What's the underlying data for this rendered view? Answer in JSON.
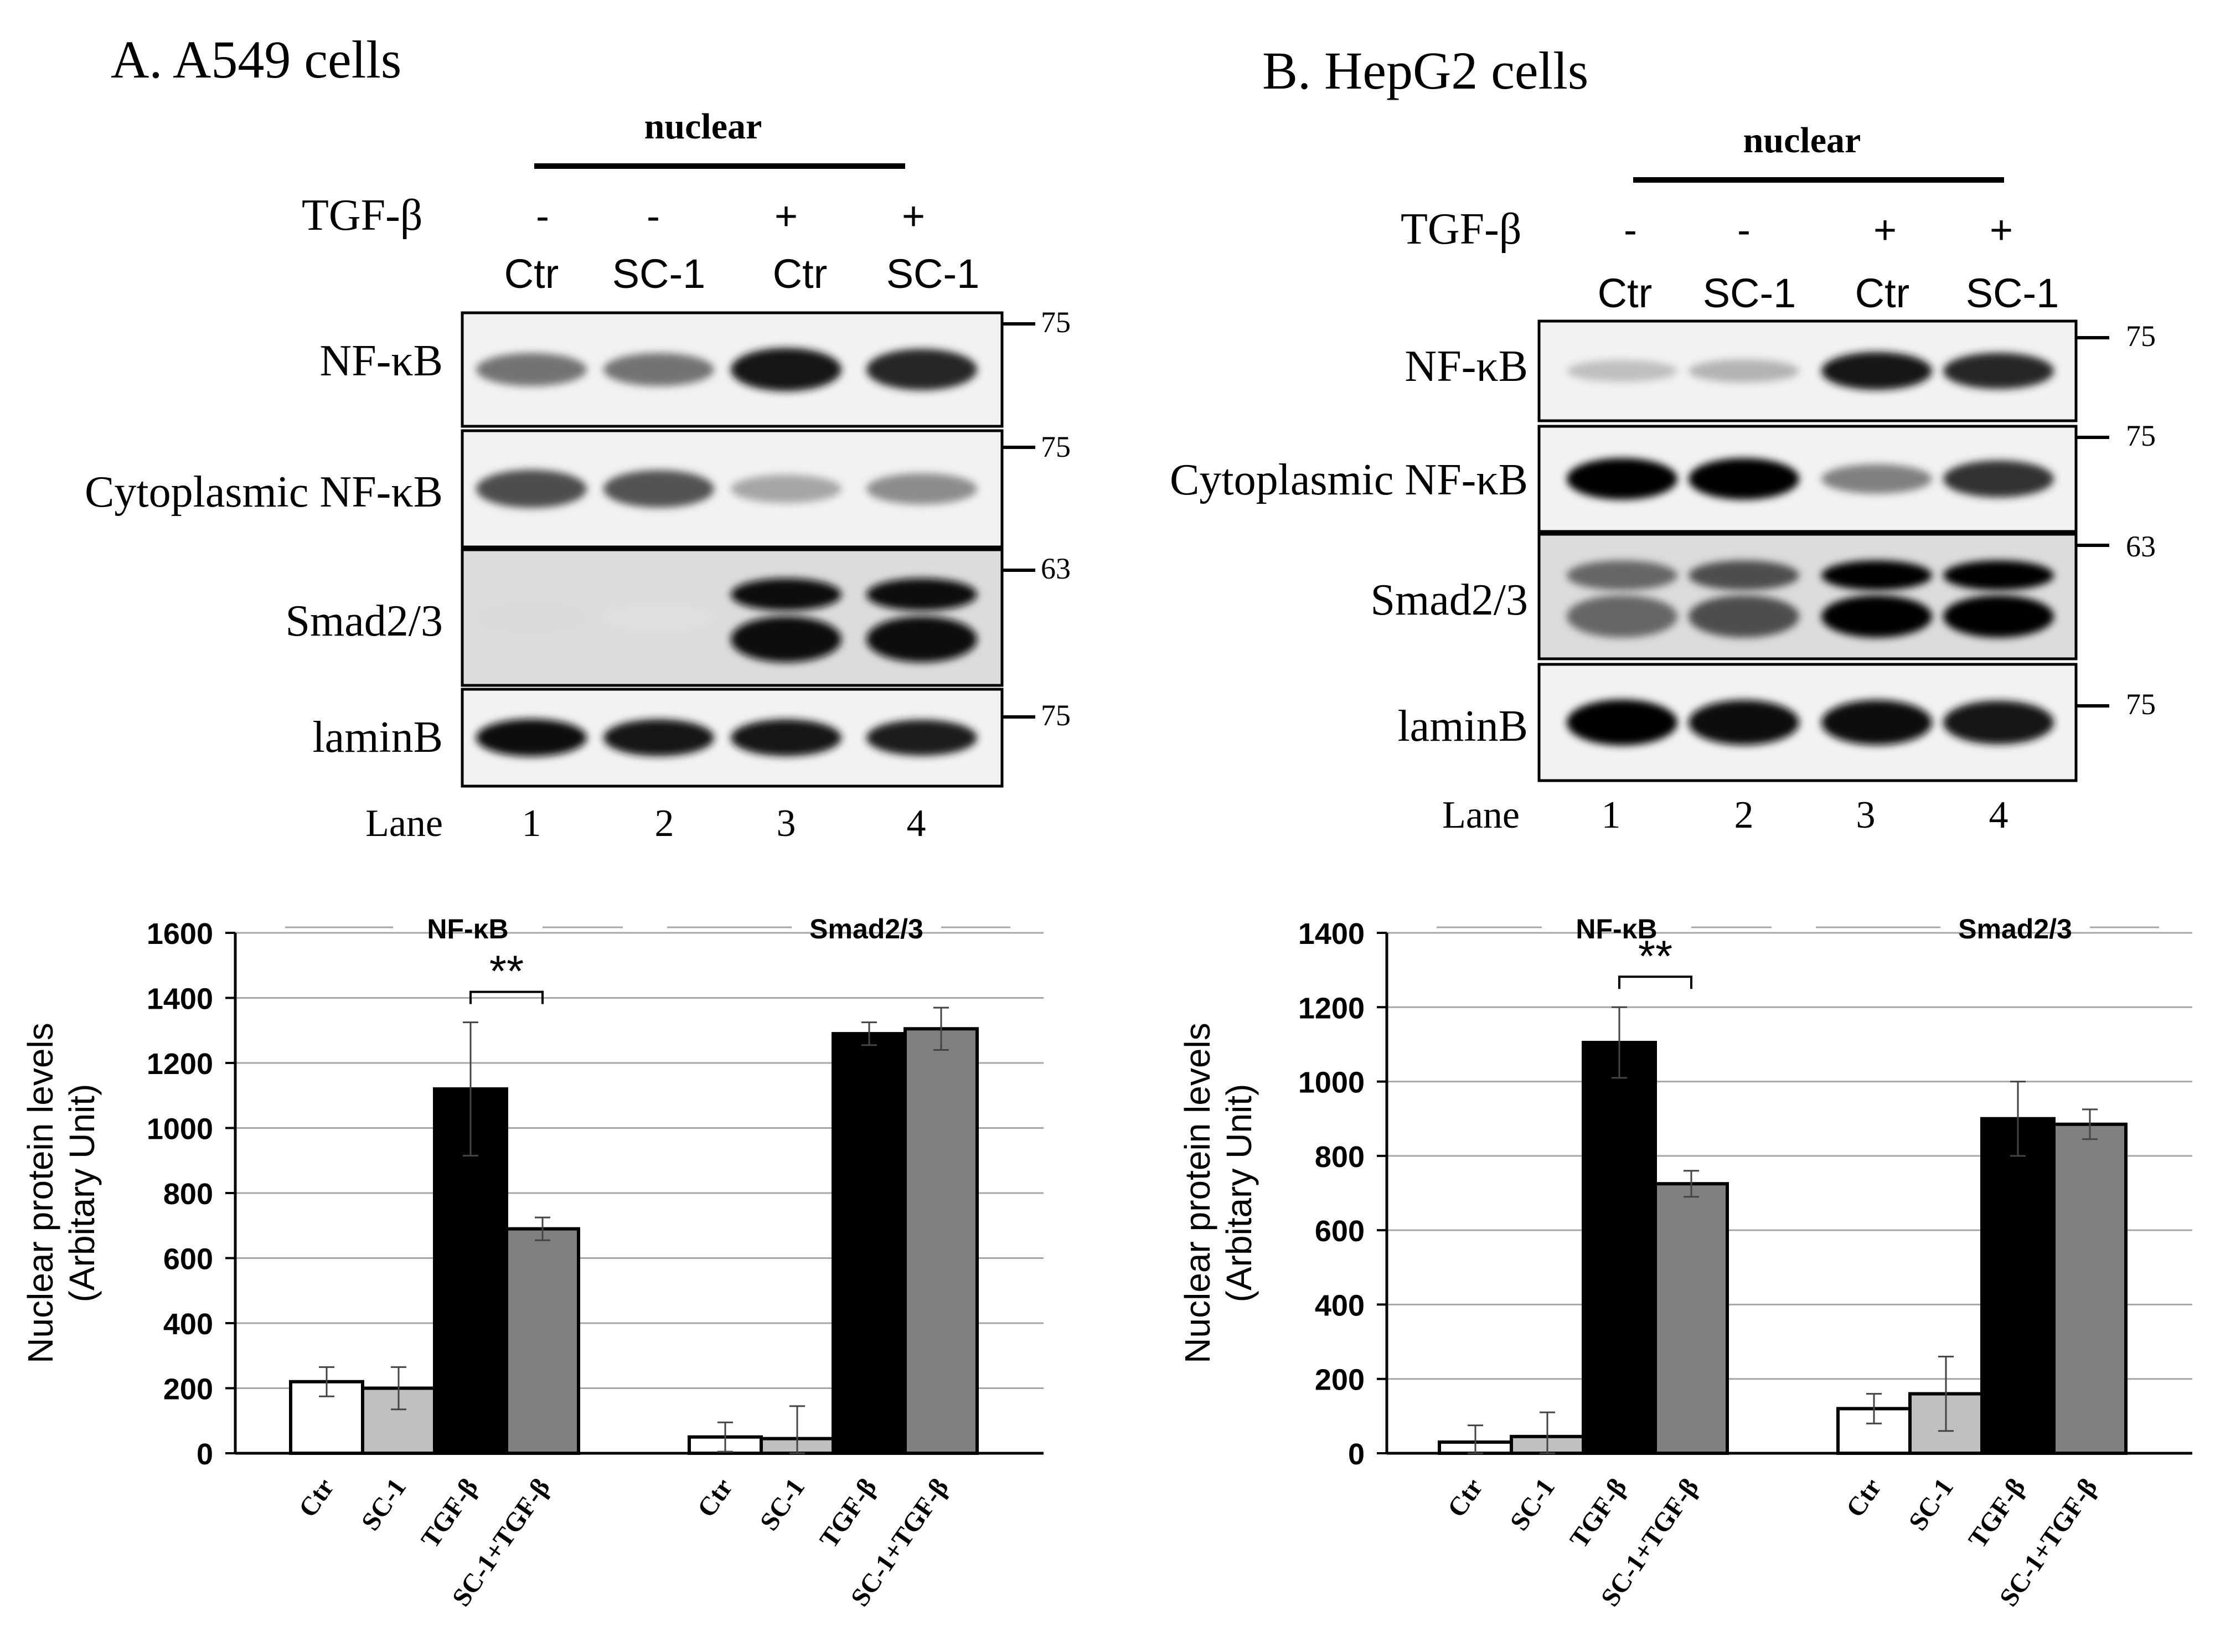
{
  "panels": [
    {
      "title": "A. A549 cells",
      "blot": {
        "header": "nuclear",
        "treatment_label": "TGF-β",
        "treatment_signs": [
          "-",
          "-",
          "+",
          "+"
        ],
        "lane_groups": [
          "Ctr",
          "SC-1",
          "Ctr",
          "SC-1"
        ],
        "lane_label": "Lane",
        "lane_numbers": [
          "1",
          "2",
          "3",
          "4"
        ],
        "rows": [
          {
            "label": "NF-κB",
            "marker": "75",
            "intensities": [
              0.55,
              0.55,
              0.92,
              0.85
            ]
          },
          {
            "label": "Cytoplasmic NF-κB",
            "marker": "75",
            "intensities": [
              0.7,
              0.68,
              0.35,
              0.45
            ]
          },
          {
            "label": "Smad2/3",
            "marker": "63",
            "intensities": [
              0.15,
              0.12,
              0.95,
              0.95
            ]
          },
          {
            "label": "laminB",
            "marker": "75",
            "intensities": [
              0.95,
              0.92,
              0.92,
              0.88
            ]
          }
        ]
      }
    },
    {
      "title": "B. HepG2 cells",
      "blot": {
        "header": "nuclear",
        "treatment_label": "TGF-β",
        "treatment_signs": [
          "-",
          "-",
          "+",
          "+"
        ],
        "lane_groups": [
          "Ctr",
          "SC-1",
          "Ctr",
          "SC-1"
        ],
        "lane_label": "Lane",
        "lane_numbers": [
          "1",
          "2",
          "3",
          "4"
        ],
        "rows": [
          {
            "label": "NF-κB",
            "marker": "75",
            "intensities": [
              0.25,
              0.3,
              0.92,
              0.85
            ]
          },
          {
            "label": "Cytoplasmic NF-κB",
            "marker": "75",
            "intensities": [
              0.98,
              0.98,
              0.5,
              0.8
            ]
          },
          {
            "label": "Smad2/3",
            "marker": "63",
            "intensities": [
              0.6,
              0.7,
              0.98,
              0.98
            ]
          },
          {
            "label": "laminB",
            "marker": "75",
            "intensities": [
              0.98,
              0.95,
              0.95,
              0.9
            ]
          }
        ]
      }
    }
  ],
  "colors": {
    "ctr": "#ffffff",
    "sc1": "#c0c0c0",
    "tgf": "#000000",
    "sc1_tgf": "#808080",
    "grid": "#a6a6a6"
  },
  "chart_data": [
    {
      "type": "bar",
      "ylabel": "Nuclear protein levels",
      "ylabel2": "(Arbitary Unit)",
      "ylim": [
        0,
        1600
      ],
      "yticks": [
        "0",
        "200",
        "400",
        "600",
        "800",
        "1000",
        "1200",
        "1400",
        "1600"
      ],
      "grid": true,
      "significance": "**",
      "groups": [
        {
          "name": "NF-κB",
          "categories": [
            "Ctr",
            "SC-1",
            "TGF-β",
            "SC-1+TGF-β"
          ],
          "values": [
            220,
            200,
            1120,
            690
          ],
          "errors": [
            45,
            65,
            205,
            35
          ]
        },
        {
          "name": "Smad2/3",
          "categories": [
            "Ctr",
            "SC-1",
            "TGF-β",
            "SC-1+TGF-β"
          ],
          "values": [
            50,
            45,
            1290,
            1305
          ],
          "errors": [
            45,
            100,
            35,
            65
          ]
        }
      ]
    },
    {
      "type": "bar",
      "ylabel": "Nuclear protein levels",
      "ylabel2": "(Arbitary Unit)",
      "ylim": [
        0,
        1400
      ],
      "yticks": [
        "0",
        "200",
        "400",
        "600",
        "800",
        "1000",
        "1200",
        "1400"
      ],
      "grid": true,
      "significance": "**",
      "groups": [
        {
          "name": "NF-κB",
          "categories": [
            "Ctr",
            "SC-1",
            "TGF-β",
            "SC-1+TGF-β"
          ],
          "values": [
            30,
            45,
            1105,
            725
          ],
          "errors": [
            45,
            65,
            95,
            35
          ]
        },
        {
          "name": "Smad2/3",
          "categories": [
            "Ctr",
            "SC-1",
            "TGF-β",
            "SC-1+TGF-β"
          ],
          "values": [
            120,
            160,
            900,
            885
          ],
          "errors": [
            40,
            100,
            100,
            40
          ]
        }
      ]
    }
  ]
}
